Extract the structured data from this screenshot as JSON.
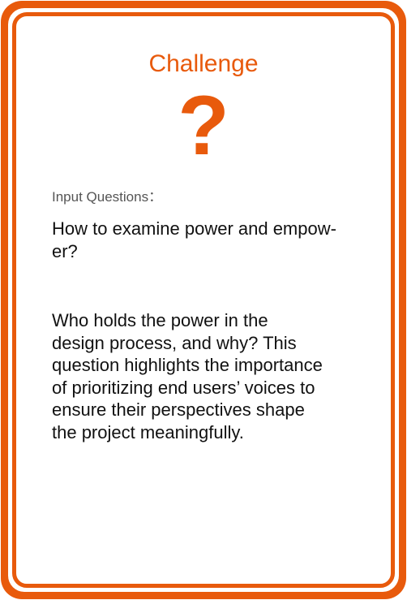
{
  "card": {
    "title": "Challenge",
    "icon": "question-mark-icon",
    "icon_glyph": "?",
    "label": "Input Questions：",
    "question_lines": [
      "How to examine power and empow-",
      "er?"
    ],
    "description_lines": [
      "Who holds the power in the",
      "design process, and why? This",
      "question highlights the importance",
      "of prioritizing end users’ voices to",
      "ensure their perspectives shape",
      "the project meaningfully."
    ]
  },
  "colors": {
    "accent": "#e85a0c",
    "label_text": "#555555",
    "body_text": "#111111"
  }
}
